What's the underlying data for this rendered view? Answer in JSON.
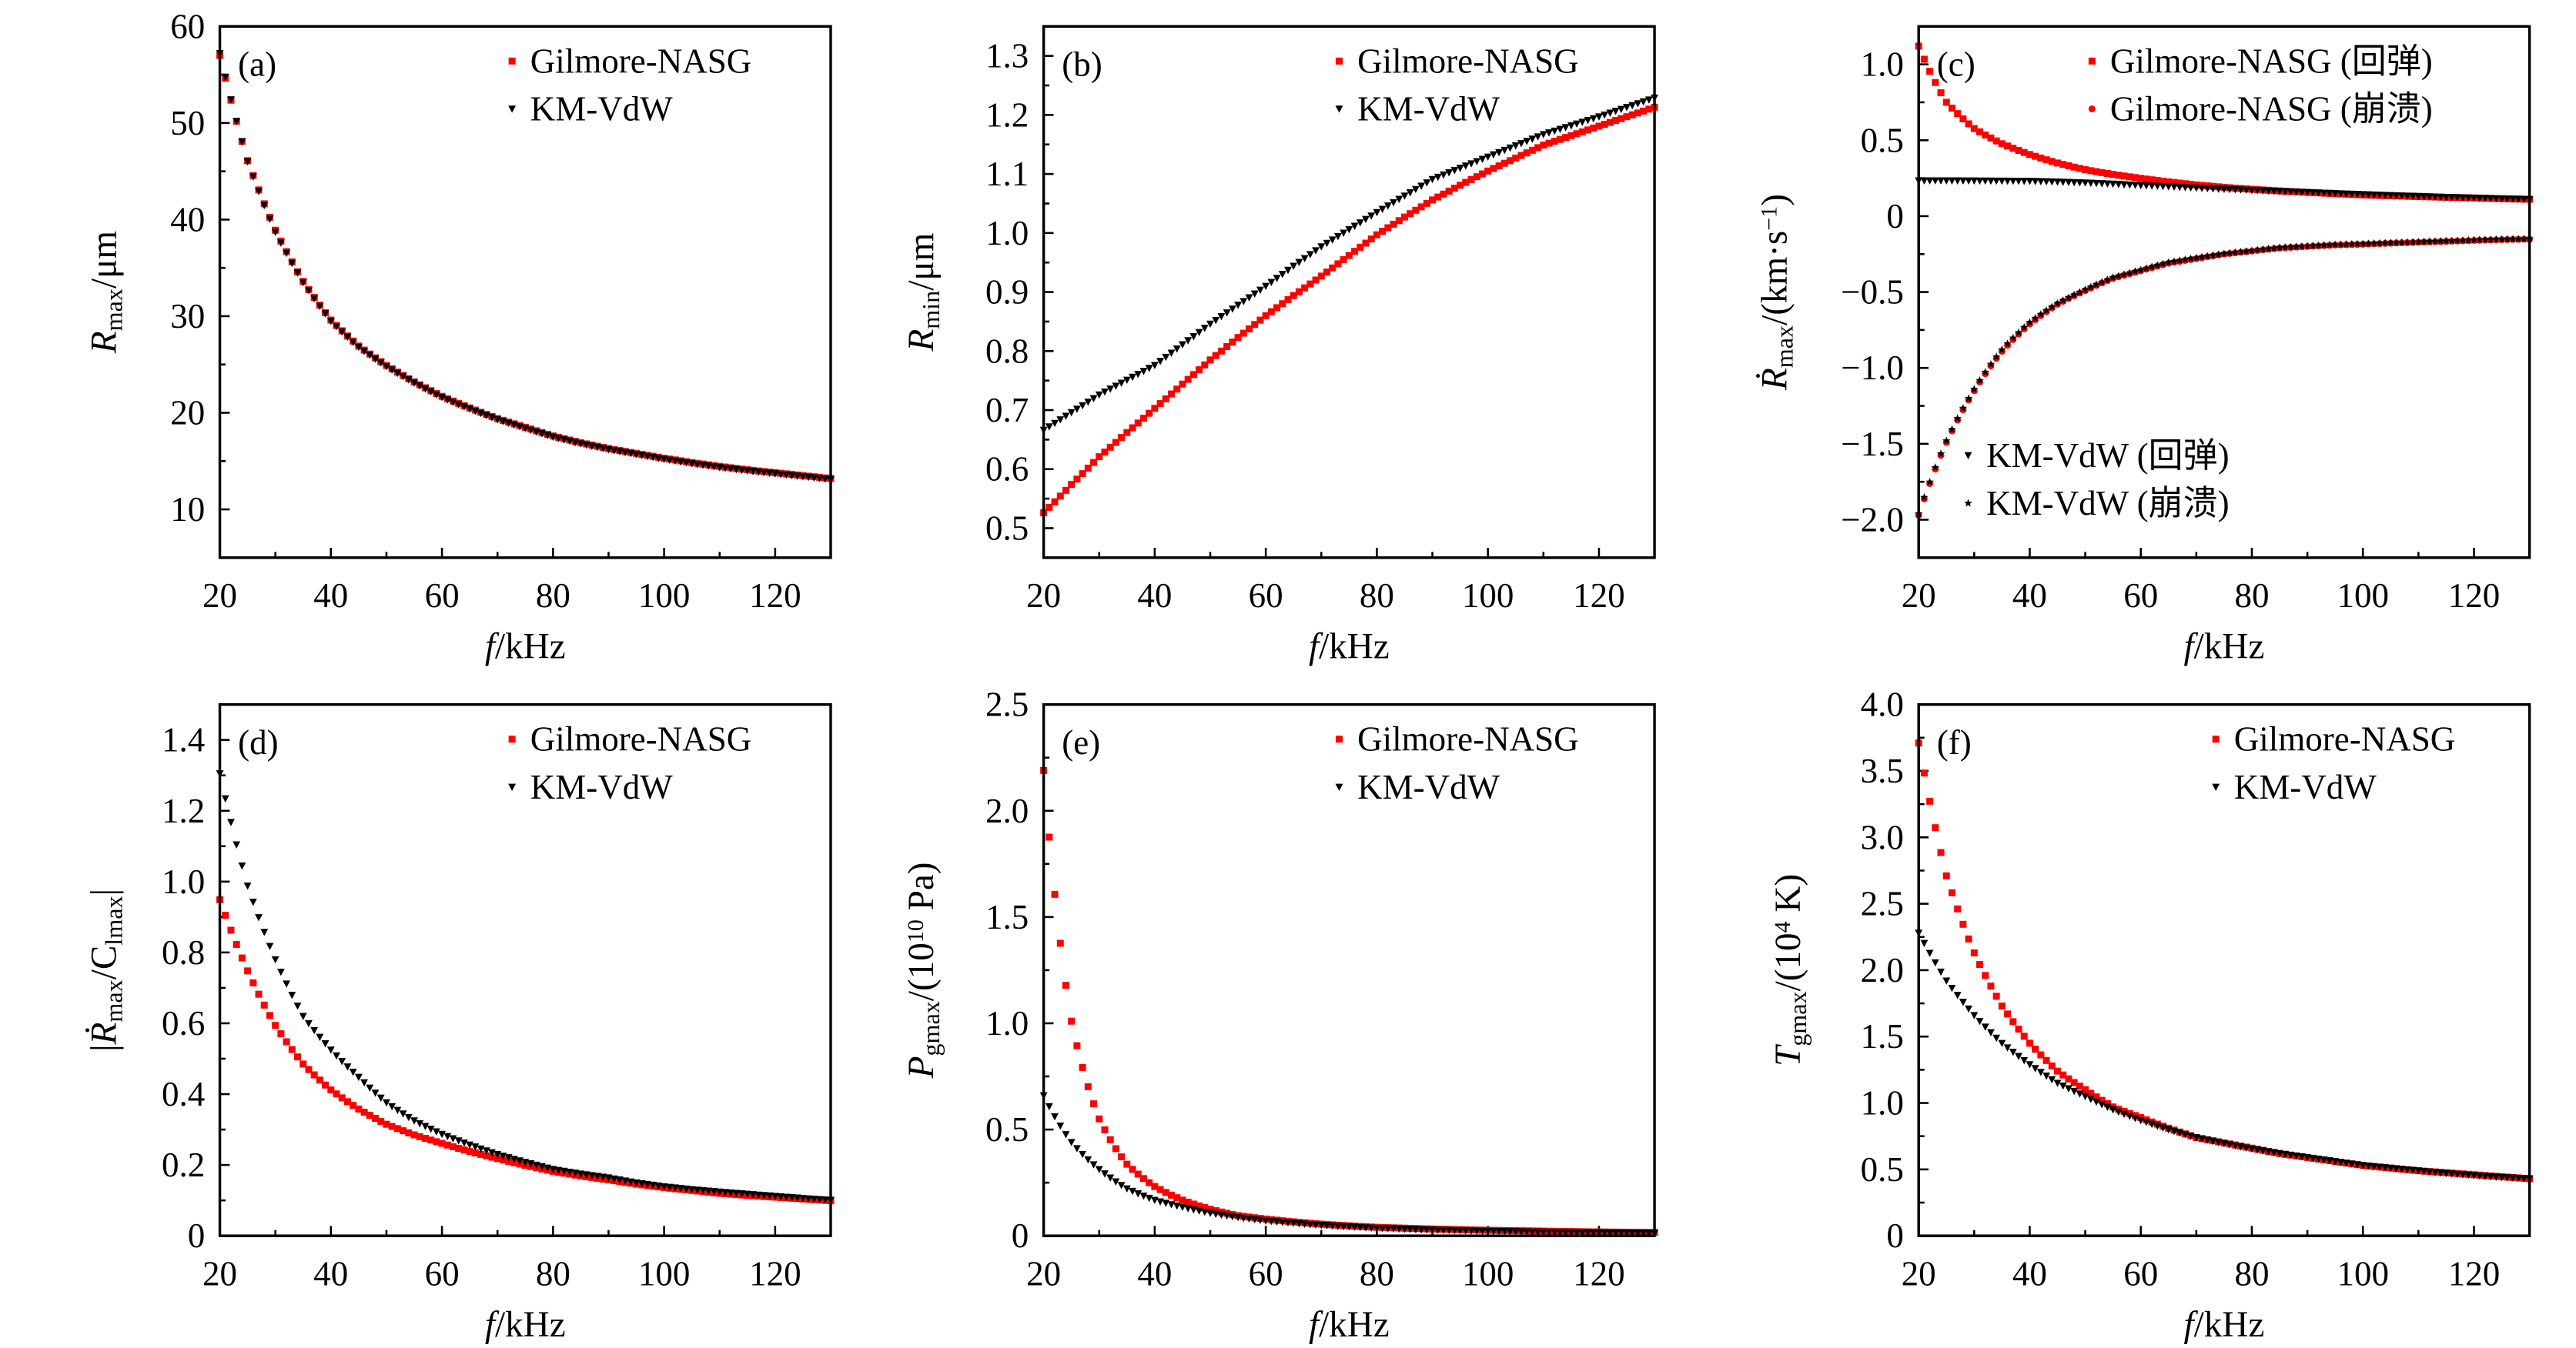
{
  "chart_data": [
    {
      "panel": "(a)",
      "type": "scatter",
      "xlabel": [
        {
          "t": "f",
          "s": "italic"
        },
        {
          "t": "/kHz",
          "s": "normal"
        }
      ],
      "ylabel": [
        {
          "t": "R",
          "s": "italic"
        },
        {
          "t": "max",
          "s": "sub"
        },
        {
          "t": "/μm",
          "s": "normal"
        }
      ],
      "xlim": [
        20,
        130
      ],
      "xticks": [
        20,
        40,
        60,
        80,
        100,
        120
      ],
      "xtick_labels": [
        "20",
        "40",
        "60",
        "80",
        "100",
        "120"
      ],
      "xminor": 10,
      "ylim": [
        5,
        60
      ],
      "yticks": [
        10,
        20,
        30,
        40,
        50,
        60
      ],
      "ytick_labels": [
        "10",
        "20",
        "30",
        "40",
        "50",
        "60"
      ],
      "yminor": 5,
      "x": [
        20,
        25,
        30,
        35,
        40,
        45,
        50,
        55,
        60,
        65,
        70,
        75,
        80,
        85,
        90,
        95,
        100,
        105,
        110,
        115,
        120,
        125,
        130
      ],
      "series": [
        {
          "name": "Gilmore-NASG",
          "marker": "square",
          "color": "#ff0000",
          "values": [
            57.0,
            46.1,
            38.9,
            33.6,
            29.6,
            26.9,
            24.9,
            23.2,
            21.7,
            20.5,
            19.4,
            18.5,
            17.6,
            16.9,
            16.3,
            15.8,
            15.3,
            14.85,
            14.45,
            14.1,
            13.8,
            13.5,
            13.2
          ]
        },
        {
          "name": "KM-VdW",
          "marker": "triangle-down",
          "color": "#000000",
          "values": [
            57.2,
            46.0,
            38.7,
            33.5,
            29.5,
            26.8,
            24.8,
            23.1,
            21.6,
            20.4,
            19.3,
            18.4,
            17.5,
            16.8,
            16.2,
            15.7,
            15.2,
            14.75,
            14.35,
            14.0,
            13.7,
            13.4,
            13.1
          ]
        }
      ]
    },
    {
      "panel": "(b)",
      "type": "scatter",
      "xlabel": [
        {
          "t": "f",
          "s": "italic"
        },
        {
          "t": "/kHz",
          "s": "normal"
        }
      ],
      "ylabel": [
        {
          "t": "R",
          "s": "italic"
        },
        {
          "t": "min",
          "s": "sub"
        },
        {
          "t": "/μm",
          "s": "normal"
        }
      ],
      "xlim": [
        20,
        130
      ],
      "xticks": [
        20,
        40,
        60,
        80,
        100,
        120
      ],
      "xtick_labels": [
        "20",
        "40",
        "60",
        "80",
        "100",
        "120"
      ],
      "xminor": 10,
      "ylim": [
        0.45,
        1.35
      ],
      "yticks": [
        0.5,
        0.6,
        0.7,
        0.8,
        0.9,
        1.0,
        1.1,
        1.2,
        1.3
      ],
      "ytick_labels": [
        "0.5",
        "0.6",
        "0.7",
        "0.8",
        "0.9",
        "1.0",
        "1.1",
        "1.2",
        "1.3"
      ],
      "yminor": 0.05,
      "x": [
        20,
        25,
        30,
        35,
        40,
        45,
        50,
        55,
        60,
        65,
        70,
        75,
        80,
        85,
        90,
        95,
        100,
        105,
        110,
        115,
        120,
        125,
        130
      ],
      "series": [
        {
          "name": "Gilmore-NASG",
          "marker": "square",
          "color": "#ff0000",
          "values": [
            0.526,
            0.574,
            0.621,
            0.662,
            0.703,
            0.744,
            0.785,
            0.823,
            0.86,
            0.894,
            0.927,
            0.962,
            0.997,
            1.027,
            1.056,
            1.081,
            1.105,
            1.127,
            1.149,
            1.165,
            1.181,
            1.197,
            1.213
          ]
        },
        {
          "name": "KM-VdW",
          "marker": "triangle-down",
          "color": "#000000",
          "values": [
            0.666,
            0.696,
            0.726,
            0.751,
            0.776,
            0.811,
            0.846,
            0.878,
            0.91,
            0.944,
            0.977,
            1.006,
            1.035,
            1.063,
            1.091,
            1.11,
            1.129,
            1.148,
            1.167,
            1.182,
            1.197,
            1.213,
            1.229
          ]
        }
      ]
    },
    {
      "panel": "(c)",
      "type": "scatter",
      "xlabel": [
        {
          "t": "f",
          "s": "italic"
        },
        {
          "t": "/kHz",
          "s": "normal"
        }
      ],
      "ylabel": [
        {
          "t": "Ṙ",
          "s": "italic"
        },
        {
          "t": "max",
          "s": "sub"
        },
        {
          "t": "/(km·s",
          "s": "normal"
        },
        {
          "t": "−1",
          "s": "sup"
        },
        {
          "t": ")",
          "s": "normal"
        }
      ],
      "xlim": [
        20,
        130
      ],
      "xticks": [
        20,
        40,
        60,
        80,
        100,
        120
      ],
      "xtick_labels": [
        "20",
        "40",
        "60",
        "80",
        "100",
        "120"
      ],
      "xminor": 10,
      "ylim": [
        -2.25,
        1.25
      ],
      "yticks": [
        -2.0,
        -1.5,
        -1.0,
        -0.5,
        0,
        0.5,
        1.0
      ],
      "ytick_labels": [
        "−2.0",
        "−1.5",
        "−1.0",
        "−0.5",
        "0",
        "0.5",
        "1.0"
      ],
      "yminor": 0.25,
      "x": [
        20,
        25,
        30,
        35,
        40,
        45,
        50,
        55,
        60,
        65,
        70,
        75,
        80,
        85,
        90,
        95,
        100,
        105,
        110,
        115,
        120,
        125,
        130
      ],
      "series": [
        {
          "name": "Gilmore-NASG (回弹)",
          "marker": "square",
          "color": "#ff0000",
          "values": [
            1.12,
            0.75,
            0.577,
            0.477,
            0.406,
            0.35,
            0.306,
            0.275,
            0.249,
            0.226,
            0.206,
            0.19,
            0.177,
            0.166,
            0.157,
            0.148,
            0.14,
            0.134,
            0.129,
            0.124,
            0.12,
            0.115,
            0.111
          ]
        },
        {
          "name": "Gilmore-NASG (崩溃)",
          "marker": "circle",
          "color": "#ff0000",
          "values": [
            -1.97,
            -1.49,
            -1.15,
            -0.89,
            -0.71,
            -0.58,
            -0.49,
            -0.41,
            -0.36,
            -0.31,
            -0.28,
            -0.25,
            -0.23,
            -0.21,
            -0.2,
            -0.19,
            -0.185,
            -0.178,
            -0.172,
            -0.166,
            -0.16,
            -0.155,
            -0.151
          ]
        },
        {
          "name": "KM-VdW (回弹)",
          "marker": "triangle-down",
          "color": "#000000",
          "values": [
            0.234,
            0.234,
            0.233,
            0.232,
            0.231,
            0.226,
            0.22,
            0.212,
            0.203,
            0.195,
            0.186,
            0.178,
            0.171,
            0.164,
            0.157,
            0.15,
            0.143,
            0.137,
            0.131,
            0.125,
            0.12,
            0.115,
            0.111
          ]
        },
        {
          "name": "KM-VdW (崩溃)",
          "marker": "star",
          "color": "#000000",
          "values": [
            -1.96,
            -1.48,
            -1.14,
            -0.88,
            -0.7,
            -0.575,
            -0.485,
            -0.405,
            -0.355,
            -0.305,
            -0.275,
            -0.248,
            -0.228,
            -0.208,
            -0.198,
            -0.188,
            -0.183,
            -0.176,
            -0.17,
            -0.164,
            -0.158,
            -0.153,
            -0.15
          ]
        }
      ]
    },
    {
      "panel": "(d)",
      "type": "scatter",
      "xlabel": [
        {
          "t": "f",
          "s": "italic"
        },
        {
          "t": "/kHz",
          "s": "normal"
        }
      ],
      "ylabel": [
        {
          "t": "|",
          "s": "normal"
        },
        {
          "t": "Ṙ",
          "s": "italic"
        },
        {
          "t": "max",
          "s": "sub"
        },
        {
          "t": "/C",
          "s": "normal"
        },
        {
          "t": "lmax",
          "s": "sub"
        },
        {
          "t": "|",
          "s": "normal"
        }
      ],
      "xlim": [
        20,
        130
      ],
      "xticks": [
        20,
        40,
        60,
        80,
        100,
        120
      ],
      "xtick_labels": [
        "20",
        "40",
        "60",
        "80",
        "100",
        "120"
      ],
      "xminor": 10,
      "ylim": [
        0,
        1.5
      ],
      "yticks": [
        0,
        0.2,
        0.4,
        0.6,
        0.8,
        1.0,
        1.2,
        1.4
      ],
      "ytick_labels": [
        "0",
        "0.2",
        "0.4",
        "0.6",
        "0.8",
        "1.0",
        "1.2",
        "1.4"
      ],
      "yminor": 0.1,
      "x": [
        20,
        25,
        30,
        35,
        40,
        45,
        50,
        55,
        60,
        65,
        70,
        75,
        80,
        85,
        90,
        95,
        100,
        105,
        110,
        115,
        120,
        125,
        130
      ],
      "series": [
        {
          "name": "Gilmore-NASG",
          "marker": "square",
          "color": "#ff0000",
          "values": [
            0.949,
            0.748,
            0.594,
            0.485,
            0.412,
            0.358,
            0.315,
            0.285,
            0.261,
            0.238,
            0.218,
            0.199,
            0.182,
            0.169,
            0.158,
            0.146,
            0.136,
            0.128,
            0.12,
            0.114,
            0.109,
            0.104,
            0.099
          ]
        },
        {
          "name": "KM-VdW",
          "marker": "triangle-down",
          "color": "#000000",
          "values": [
            1.305,
            0.988,
            0.78,
            0.62,
            0.525,
            0.448,
            0.376,
            0.325,
            0.287,
            0.257,
            0.23,
            0.208,
            0.188,
            0.175,
            0.164,
            0.15,
            0.139,
            0.131,
            0.124,
            0.118,
            0.112,
            0.106,
            0.101
          ]
        }
      ]
    },
    {
      "panel": "(e)",
      "type": "scatter",
      "xlabel": [
        {
          "t": "f",
          "s": "italic"
        },
        {
          "t": "/kHz",
          "s": "normal"
        }
      ],
      "ylabel": [
        {
          "t": "P",
          "s": "italic"
        },
        {
          "t": "gmax",
          "s": "sub"
        },
        {
          "t": "/(10",
          "s": "normal"
        },
        {
          "t": "10",
          "s": "sup"
        },
        {
          "t": " Pa)",
          "s": "normal"
        }
      ],
      "xlim": [
        20,
        130
      ],
      "xticks": [
        20,
        40,
        60,
        80,
        100,
        120
      ],
      "xtick_labels": [
        "20",
        "40",
        "60",
        "80",
        "100",
        "120"
      ],
      "xminor": 10,
      "ylim": [
        0,
        2.5
      ],
      "yticks": [
        0,
        0.5,
        1.0,
        1.5,
        2.0,
        2.5
      ],
      "ytick_labels": [
        "0",
        "0.5",
        "1.0",
        "1.5",
        "2.0",
        "2.5"
      ],
      "yminor": 0.25,
      "x": [
        20,
        25,
        30,
        35,
        40,
        45,
        50,
        55,
        60,
        65,
        70,
        75,
        80,
        85,
        90,
        95,
        100,
        105,
        110,
        115,
        120,
        125,
        130
      ],
      "series": [
        {
          "name": "Gilmore-NASG",
          "marker": "square",
          "color": "#ff0000",
          "values": [
            2.19,
            1.01,
            0.55,
            0.337,
            0.232,
            0.168,
            0.125,
            0.095,
            0.079,
            0.066,
            0.055,
            0.047,
            0.04,
            0.036,
            0.032,
            0.029,
            0.026,
            0.024,
            0.022,
            0.02,
            0.018,
            0.017,
            0.016
          ]
        },
        {
          "name": "KM-VdW",
          "marker": "triangle-down",
          "color": "#000000",
          "values": [
            0.66,
            0.44,
            0.313,
            0.222,
            0.168,
            0.135,
            0.107,
            0.087,
            0.071,
            0.06,
            0.05,
            0.043,
            0.036,
            0.032,
            0.028,
            0.025,
            0.022,
            0.02,
            0.018,
            0.016,
            0.015,
            0.014,
            0.013
          ]
        }
      ]
    },
    {
      "panel": "(f)",
      "type": "scatter",
      "xlabel": [
        {
          "t": "f",
          "s": "italic"
        },
        {
          "t": "/kHz",
          "s": "normal"
        }
      ],
      "ylabel": [
        {
          "t": "T",
          "s": "italic"
        },
        {
          "t": "gmax",
          "s": "sub"
        },
        {
          "t": "/(10",
          "s": "normal"
        },
        {
          "t": "4",
          "s": "sup"
        },
        {
          "t": " K)",
          "s": "normal"
        }
      ],
      "xlim": [
        20,
        130
      ],
      "xticks": [
        20,
        40,
        60,
        80,
        100,
        120
      ],
      "xtick_labels": [
        "20",
        "40",
        "60",
        "80",
        "100",
        "120"
      ],
      "xminor": 10,
      "ylim": [
        0,
        4.0
      ],
      "yticks": [
        0,
        0.5,
        1.0,
        1.5,
        2.0,
        2.5,
        3.0,
        3.5,
        4.0
      ],
      "ytick_labels": [
        "0",
        "0.5",
        "1.0",
        "1.5",
        "2.0",
        "2.5",
        "3.0",
        "3.5",
        "4.0"
      ],
      "yminor": 0.25,
      "x": [
        20,
        25,
        30,
        35,
        40,
        45,
        50,
        55,
        60,
        65,
        70,
        75,
        80,
        85,
        90,
        95,
        100,
        105,
        110,
        115,
        120,
        125,
        130
      ],
      "series": [
        {
          "name": "Gilmore-NASG",
          "marker": "square",
          "color": "#ff0000",
          "values": [
            3.71,
            2.71,
            2.13,
            1.73,
            1.45,
            1.24,
            1.1,
            0.97,
            0.89,
            0.81,
            0.74,
            0.7,
            0.66,
            0.62,
            0.59,
            0.56,
            0.53,
            0.51,
            0.49,
            0.475,
            0.46,
            0.445,
            0.43
          ]
        },
        {
          "name": "KM-VdW",
          "marker": "triangle-down",
          "color": "#000000",
          "values": [
            2.28,
            1.92,
            1.66,
            1.45,
            1.29,
            1.15,
            1.05,
            0.95,
            0.87,
            0.8,
            0.74,
            0.695,
            0.655,
            0.62,
            0.59,
            0.56,
            0.53,
            0.51,
            0.49,
            0.47,
            0.455,
            0.44,
            0.43
          ]
        }
      ]
    }
  ]
}
